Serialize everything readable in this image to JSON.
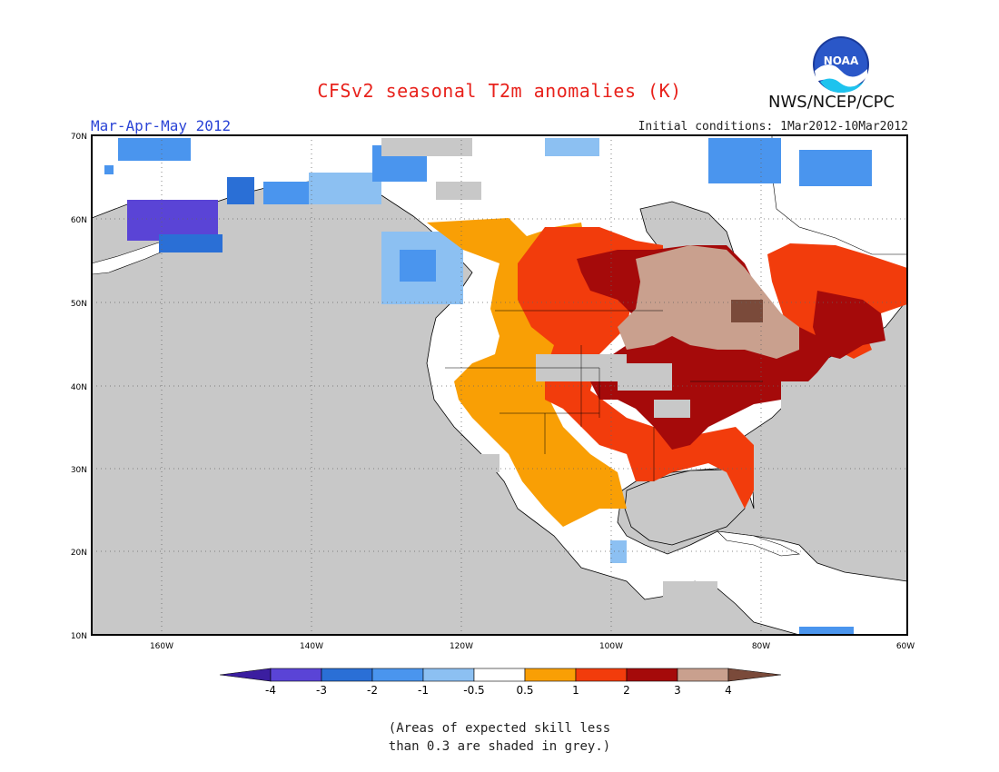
{
  "header": {
    "title": "CFSv2 seasonal T2m anomalies (K)",
    "agency": "NWS/NCEP/CPC",
    "logo_text": "NOAA",
    "season": "Mar-Apr-May 2012",
    "initial_conditions": "Initial conditions: 1Mar2012-10Mar2012"
  },
  "map": {
    "lat_labels": [
      "70N",
      "60N",
      "50N",
      "40N",
      "30N",
      "20N",
      "10N"
    ],
    "lon_labels": [
      "160W",
      "140W",
      "120W",
      "100W",
      "80W",
      "60W"
    ],
    "colors": {
      "ocean_grey": "#c8c8c8",
      "land": "#ffffff",
      "grid": "#555555"
    }
  },
  "colorbar": {
    "tick_labels": [
      "-4",
      "-3",
      "-2",
      "-1",
      "-0.5",
      "0.5",
      "1",
      "2",
      "3",
      "4"
    ],
    "colors": [
      "#3b1ea0",
      "#5a44d6",
      "#2a6fd6",
      "#4a95ee",
      "#8cc0f2",
      "#ffffff",
      "#f99f05",
      "#f23c0c",
      "#a50a0a",
      "#c9a08e",
      "#7a4a3a"
    ]
  },
  "footnote": {
    "line1": "(Areas of expected skill less",
    "line2": "than 0.3 are shaded in grey.)"
  }
}
